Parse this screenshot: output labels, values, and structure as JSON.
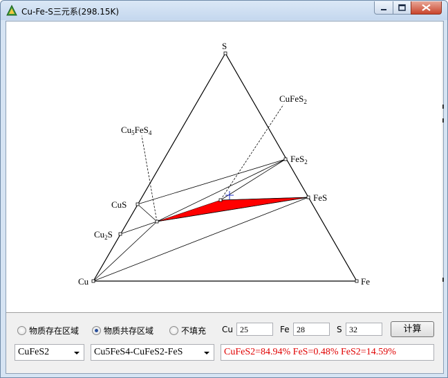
{
  "window": {
    "title": "Cu-Fe-S三元系(298.15K)",
    "icon": "triangle-app-icon"
  },
  "diagram": {
    "vertices": {
      "top": "S",
      "left": "Cu",
      "right": "Fe"
    },
    "phase_labels": {
      "cufes2": "CuFeS",
      "cufes2_sub": "2",
      "cu5fes4_main": "Cu",
      "cu5fes4_sub1": "5",
      "cu5fes4_mid": "FeS",
      "cu5fes4_sub2": "4",
      "fes2": "FeS",
      "fes2_sub": "2",
      "cus": "CuS",
      "fes": "FeS",
      "cu2s_main": "Cu",
      "cu2s_sub": "2",
      "cu2s_end": "S"
    },
    "fill_color": "#ff0000",
    "marker_color": "#2233cc"
  },
  "controls": {
    "radio_options": [
      {
        "label": "物质存在区域",
        "selected": false
      },
      {
        "label": "物质共存区域",
        "selected": true
      },
      {
        "label": "不填充",
        "selected": false
      }
    ],
    "cu_label": "Cu",
    "cu_value": "25",
    "fe_label": "Fe",
    "fe_value": "28",
    "s_label": "S",
    "s_value": "32",
    "compute_button": "计算",
    "substance_select": "CuFeS2",
    "region_select": "Cu5FeS4-CuFeS2-FeS",
    "result_text": "CuFeS2=84.94% FeS=0.48% FeS2=14.59%"
  }
}
